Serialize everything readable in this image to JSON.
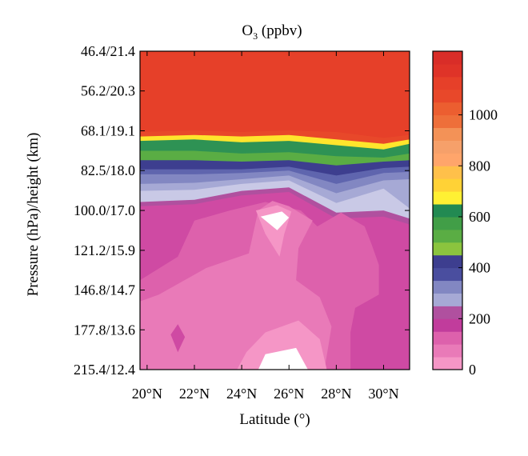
{
  "chart_data": {
    "type": "heatmap",
    "title": "O",
    "title_subscript": "3",
    "title_suffix": " (ppbv)",
    "xlabel": "Latitude (°)",
    "ylabel": "Pressure (hPa)/height (km)",
    "x_ticks": [
      "20°N",
      "22°N",
      "24°N",
      "26°N",
      "28°N",
      "30°N"
    ],
    "x_tick_values": [
      20,
      22,
      24,
      26,
      28,
      30
    ],
    "xlim": [
      19.7,
      31.1
    ],
    "y_ticks": [
      "46.4/21.4",
      "56.2/20.3",
      "68.1/19.1",
      "82.5/18.0",
      "100.0/17.0",
      "121.2/15.9",
      "146.8/14.7",
      "177.8/13.6",
      "215.4/12.4"
    ],
    "y_tick_values": [
      46.4,
      56.2,
      68.1,
      82.5,
      100.0,
      121.2,
      146.8,
      177.8,
      215.4
    ],
    "y_scale": "log",
    "y_reversed": true,
    "ylim": [
      215.4,
      46.4
    ],
    "colorbar": {
      "ticks": [
        0,
        200,
        400,
        600,
        800,
        1000
      ],
      "range": [
        0,
        1250
      ],
      "step": 50,
      "colors": [
        "#f596c6",
        "#e97ab8",
        "#dd61ac",
        "#cf4aa3",
        "#c13c9c",
        "#b0509f",
        "#c9c9e6",
        "#a6a9d5",
        "#8287c2",
        "#5f65ae",
        "#4a4e9f",
        "#3d3e8f",
        "#8bc43e",
        "#72b83f",
        "#5aad44",
        "#419e47",
        "#2e9254",
        "#228a52",
        "#fff033",
        "#ffe52c",
        "#ffd236",
        "#ffc04a",
        "#ffb25e",
        "#ffa56b",
        "#f6a06a",
        "#f39257",
        "#f18147",
        "#ee6f3a",
        "#ec5e30",
        "#ea512b",
        "#e8482a",
        "#e64029",
        "#e33a28",
        "#df3328",
        "#d92d28",
        "#d32626"
      ]
    },
    "levels": [
      {
        "value": 1075,
        "color": "#e8482a",
        "boundary": [
          [
            19.7,
            68.5
          ],
          [
            22,
            68.0
          ],
          [
            24,
            68.5
          ],
          [
            26,
            68.0
          ],
          [
            28,
            68.5
          ],
          [
            30,
            70.5
          ],
          [
            31.1,
            69.5
          ]
        ]
      },
      {
        "value": 700,
        "color": "#ffe52c",
        "boundary": [
          [
            19.7,
            70.0
          ],
          [
            22,
            69.5
          ],
          [
            24,
            70.0
          ],
          [
            26,
            69.5
          ],
          [
            28,
            71.0
          ],
          [
            30,
            72.5
          ],
          [
            31.1,
            71.0
          ]
        ]
      },
      {
        "value": 525,
        "color": "#2e9254",
        "boundary": [
          [
            19.7,
            71.5
          ],
          [
            22,
            71.0
          ],
          [
            24,
            72.0
          ],
          [
            26,
            71.5
          ],
          [
            28,
            73.0
          ],
          [
            30,
            74.5
          ],
          [
            31.1,
            72.5
          ]
        ]
      },
      {
        "value": 450,
        "color": "#5aad44",
        "boundary": [
          [
            19.7,
            75.0
          ],
          [
            22,
            75.0
          ],
          [
            24,
            76.0
          ],
          [
            26,
            75.5
          ],
          [
            28,
            77.0
          ],
          [
            30,
            77.5
          ],
          [
            31.1,
            76.0
          ]
        ]
      },
      {
        "value": 375,
        "color": "#3d3e8f",
        "boundary": [
          [
            19.7,
            78.5
          ],
          [
            22,
            78.5
          ],
          [
            24,
            79.0
          ],
          [
            26,
            78.5
          ],
          [
            28,
            80.5
          ],
          [
            30,
            79.0
          ],
          [
            31.1,
            78.5
          ]
        ]
      },
      {
        "value": 300,
        "color": "#5f65ae",
        "boundary": [
          [
            19.7,
            82.0
          ],
          [
            22,
            82.0
          ],
          [
            24,
            82.0
          ],
          [
            26,
            81.0
          ],
          [
            28,
            84.5
          ],
          [
            30,
            81.5
          ],
          [
            31.1,
            81.0
          ]
        ]
      },
      {
        "value": 250,
        "color": "#8287c2",
        "boundary": [
          [
            19.7,
            84.0
          ],
          [
            22,
            84.0
          ],
          [
            24,
            83.5
          ],
          [
            26,
            82.5
          ],
          [
            28,
            88.0
          ],
          [
            30,
            83.5
          ],
          [
            31.1,
            83.0
          ]
        ]
      },
      {
        "value": 225,
        "color": "#a6a9d5",
        "boundary": [
          [
            19.7,
            88.0
          ],
          [
            22,
            87.5
          ],
          [
            24,
            86.0
          ],
          [
            26,
            84.5
          ],
          [
            28,
            92.0
          ],
          [
            30,
            86.5
          ],
          [
            31.1,
            86.0
          ]
        ]
      },
      {
        "value": 200,
        "color": "#c9c9e6",
        "boundary": [
          [
            19.7,
            91.0
          ],
          [
            22,
            90.5
          ],
          [
            24,
            88.0
          ],
          [
            26,
            86.5
          ],
          [
            28,
            96.5
          ],
          [
            30,
            90.0
          ],
          [
            31.1,
            99.0
          ]
        ]
      },
      {
        "value": 175,
        "color": "#b0509f",
        "boundary": [
          [
            19.7,
            96.0
          ],
          [
            22,
            95.0
          ],
          [
            24,
            91.0
          ],
          [
            26,
            89.5
          ],
          [
            28,
            101.0
          ],
          [
            30,
            100.0
          ],
          [
            31.1,
            104.0
          ]
        ]
      }
    ],
    "low_regions": [
      {
        "value": 125,
        "color": "#cf4aa3",
        "polygon": [
          [
            19.7,
            215.4
          ],
          [
            19.7,
            98
          ],
          [
            22,
            97
          ],
          [
            24,
            93
          ],
          [
            26,
            91.5
          ],
          [
            28,
            104
          ],
          [
            30,
            103
          ],
          [
            31.1,
            107
          ],
          [
            31.1,
            215.4
          ]
        ]
      },
      {
        "value": 100,
        "color": "#dd61ac",
        "polygon": [
          [
            19.7,
            140
          ],
          [
            21.3,
            125
          ],
          [
            22,
            105
          ],
          [
            23.5,
            100
          ],
          [
            25,
            96
          ],
          [
            26.5,
            100
          ],
          [
            27.2,
            108
          ],
          [
            28.2,
            101
          ],
          [
            29.2,
            108
          ],
          [
            29.5,
            118
          ],
          [
            29.8,
            130
          ],
          [
            29.8,
            150
          ],
          [
            28.8,
            160
          ],
          [
            28.6,
            180
          ],
          [
            28.6,
            215.4
          ],
          [
            19.7,
            215.4
          ]
        ]
      },
      {
        "value": 75,
        "color": "#e97ab8",
        "polygon": [
          [
            19.7,
            155
          ],
          [
            20.5,
            150
          ],
          [
            22.5,
            132
          ],
          [
            24.3,
            123
          ],
          [
            24.7,
            100
          ],
          [
            25.3,
            95.5
          ],
          [
            26,
            98
          ],
          [
            27,
            105
          ],
          [
            26.4,
            120
          ],
          [
            26.3,
            140
          ],
          [
            27.3,
            152
          ],
          [
            27.8,
            175
          ],
          [
            27.5,
            215.4
          ],
          [
            19.7,
            215.4
          ]
        ]
      },
      {
        "value": 50,
        "color": "#f596c6",
        "polygon": [
          [
            24.6,
            100
          ],
          [
            25.5,
            97.5
          ],
          [
            26.1,
            100.5
          ],
          [
            25.8,
            112
          ],
          [
            25.6,
            125
          ],
          [
            25.0,
            112
          ]
        ]
      },
      {
        "value": 50,
        "color": "#f596c6",
        "polygon": [
          [
            23.8,
            215.4
          ],
          [
            24.2,
            198
          ],
          [
            25.0,
            180
          ],
          [
            26.4,
            170
          ],
          [
            27.3,
            186
          ],
          [
            27.6,
            215.4
          ]
        ]
      },
      {
        "value": 0,
        "color": "#ffffff",
        "polygon": [
          [
            24.8,
            103
          ],
          [
            25.7,
            100.5
          ],
          [
            26.0,
            103.5
          ],
          [
            25.5,
            110
          ]
        ]
      },
      {
        "value": 0,
        "color": "#ffffff",
        "polygon": [
          [
            24.7,
            215.4
          ],
          [
            25.0,
            200
          ],
          [
            26.3,
            194
          ],
          [
            26.8,
            215.4
          ]
        ]
      },
      {
        "value": 100,
        "color": "#dd61ac",
        "polygon": [
          [
            28.8,
            140
          ],
          [
            29.4,
            134
          ],
          [
            29.7,
            141
          ],
          [
            29.2,
            150
          ]
        ]
      },
      {
        "value": 125,
        "color": "#cf4aa3",
        "polygon": [
          [
            21.0,
            182
          ],
          [
            21.3,
            173
          ],
          [
            21.6,
            184
          ],
          [
            21.3,
            198
          ]
        ]
      }
    ]
  }
}
